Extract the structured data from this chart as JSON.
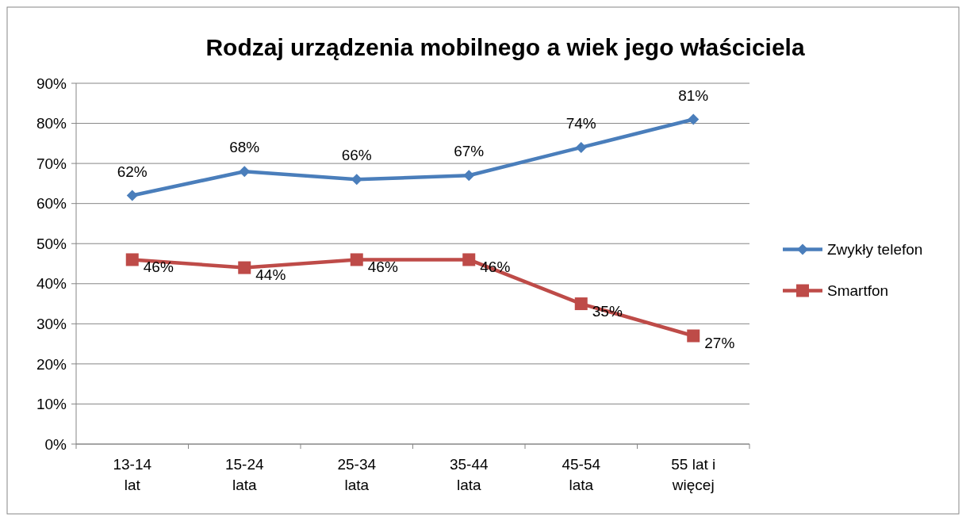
{
  "chart_data": {
    "type": "line",
    "title": "Rodzaj urządzenia mobilnego a wiek jego właściciela",
    "categories": [
      "13-14 lat",
      "15-24 lata",
      "25-34 lata",
      "35-44 lata",
      "45-54 lata",
      "55 lat i więcej"
    ],
    "series": [
      {
        "name": "Zwykły telefon",
        "color": "#4a7ebb",
        "marker": "diamond",
        "values": [
          62,
          68,
          66,
          67,
          74,
          81
        ],
        "value_labels": [
          "62%",
          "68%",
          "66%",
          "67%",
          "74%",
          "81%"
        ]
      },
      {
        "name": "Smartfon",
        "color": "#be4b48",
        "marker": "square",
        "values": [
          46,
          44,
          46,
          46,
          35,
          27
        ],
        "value_labels": [
          "46%",
          "44%",
          "46%",
          "46%",
          "35%",
          "27%"
        ]
      }
    ],
    "ylim": [
      0,
      90
    ],
    "yticks": [
      {
        "value": 0,
        "label": "0%"
      },
      {
        "value": 10,
        "label": "10%"
      },
      {
        "value": 20,
        "label": "20%"
      },
      {
        "value": 30,
        "label": "30%"
      },
      {
        "value": 40,
        "label": "40%"
      },
      {
        "value": 50,
        "label": "50%"
      },
      {
        "value": 60,
        "label": "60%"
      },
      {
        "value": 70,
        "label": "70%"
      },
      {
        "value": 80,
        "label": "80%"
      },
      {
        "value": 90,
        "label": "90%"
      }
    ],
    "grid": "y",
    "legend": "right",
    "line_style": "solid"
  }
}
